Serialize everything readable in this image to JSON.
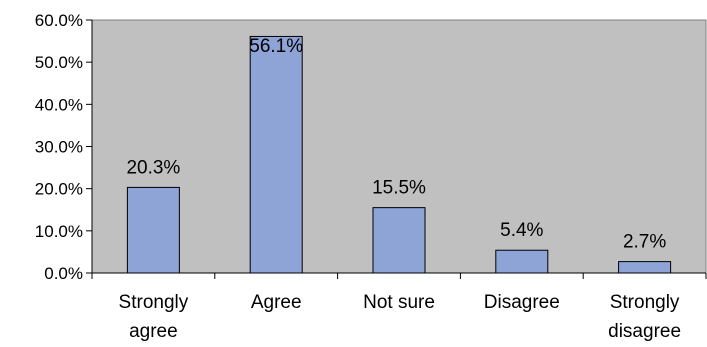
{
  "chart_data": {
    "type": "bar",
    "categories": [
      [
        "Strongly",
        "agree"
      ],
      [
        "Agree"
      ],
      [
        "Not sure"
      ],
      [
        "Disagree"
      ],
      [
        "Strongly",
        "disagree"
      ]
    ],
    "values": [
      20.3,
      56.1,
      15.5,
      5.4,
      2.7
    ],
    "value_labels": [
      "20.3%",
      "56.1%",
      "15.5%",
      "5.4%",
      "2.7%"
    ],
    "yticks": [
      "0.0%",
      "10.0%",
      "20.0%",
      "30.0%",
      "40.0%",
      "50.0%",
      "60.0%"
    ],
    "ylim": [
      0,
      60
    ],
    "grid": false,
    "legend": "none",
    "colors": {
      "plot_background": "#c0c0c0",
      "bar_fill": "#8ea3d6",
      "bar_stroke": "#000000"
    }
  }
}
